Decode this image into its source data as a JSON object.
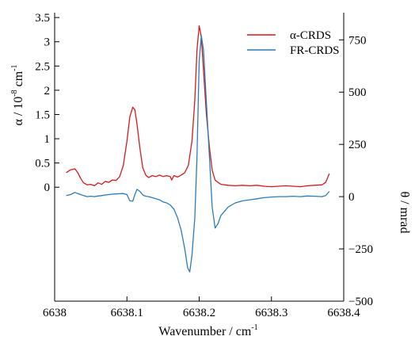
{
  "chart_data": {
    "type": "line",
    "xlabel": "Wavenumber / cm",
    "xlabel_sup": "-1",
    "ylabel_left": "α / 10",
    "ylabel_left_exp": "-8",
    "ylabel_left_unit": "cm",
    "ylabel_left_unit_exp": "-1",
    "ylabel_right": "θ / mrad",
    "xlim": [
      6638.0,
      6638.4
    ],
    "ylim_left": [
      -2.35,
      3.6
    ],
    "ylim_right": [
      -500,
      880
    ],
    "x_ticks": [
      "6638",
      "6638.1",
      "6638.2",
      "6638.3",
      "6638.4"
    ],
    "y_left_ticks": [
      "0",
      "0.5",
      "1",
      "1.5",
      "2",
      "2.5",
      "3",
      "3.5"
    ],
    "y_right_ticks": [
      "-500",
      "-250",
      "0",
      "250",
      "500",
      "750"
    ],
    "legend_position": "top-right",
    "grid": false,
    "series": [
      {
        "name": "α-CRDS",
        "axis": "left",
        "color": "#d7191c",
        "x": [
          6638.016,
          6638.022,
          6638.028,
          6638.032,
          6638.036,
          6638.04,
          6638.045,
          6638.05,
          6638.055,
          6638.06,
          6638.065,
          6638.07,
          6638.075,
          6638.08,
          6638.085,
          6638.09,
          6638.095,
          6638.1,
          6638.104,
          6638.108,
          6638.111,
          6638.114,
          6638.118,
          6638.122,
          6638.126,
          6638.13,
          6638.135,
          6638.14,
          6638.145,
          6638.15,
          6638.155,
          6638.16,
          6638.162,
          6638.165,
          6638.17,
          6638.175,
          6638.18,
          6638.185,
          6638.19,
          6638.194,
          6638.197,
          6638.2,
          6638.203,
          6638.206,
          6638.21,
          6638.214,
          6638.218,
          6638.222,
          6638.226,
          6638.23,
          6638.24,
          6638.25,
          6638.26,
          6638.27,
          6638.28,
          6638.29,
          6638.3,
          6638.31,
          6638.32,
          6638.33,
          6638.34,
          6638.35,
          6638.36,
          6638.37,
          6638.375,
          6638.38
        ],
        "y": [
          0.3,
          0.36,
          0.38,
          0.3,
          0.18,
          0.09,
          0.05,
          0.06,
          0.03,
          0.09,
          0.06,
          0.12,
          0.1,
          0.15,
          0.14,
          0.22,
          0.45,
          0.95,
          1.45,
          1.65,
          1.6,
          1.3,
          0.8,
          0.4,
          0.25,
          0.2,
          0.24,
          0.22,
          0.25,
          0.22,
          0.24,
          0.22,
          0.15,
          0.24,
          0.21,
          0.25,
          0.3,
          0.45,
          0.95,
          1.8,
          2.85,
          3.33,
          3.1,
          2.4,
          1.5,
          0.85,
          0.35,
          0.15,
          0.1,
          0.06,
          0.04,
          0.03,
          0.04,
          0.03,
          0.04,
          0.02,
          0.01,
          0.02,
          0.03,
          0.02,
          0.01,
          0.03,
          0.04,
          0.05,
          0.1,
          0.28
        ]
      },
      {
        "name": "FR-CRDS",
        "axis": "right",
        "color": "#2b7bb9",
        "x": [
          6638.016,
          6638.022,
          6638.028,
          6638.032,
          6638.036,
          6638.04,
          6638.045,
          6638.05,
          6638.055,
          6638.06,
          6638.065,
          6638.07,
          6638.075,
          6638.08,
          6638.085,
          6638.09,
          6638.095,
          6638.1,
          6638.104,
          6638.108,
          6638.111,
          6638.114,
          6638.118,
          6638.122,
          6638.126,
          6638.13,
          6638.135,
          6638.14,
          6638.145,
          6638.15,
          6638.155,
          6638.16,
          6638.165,
          6638.17,
          6638.175,
          6638.18,
          6638.184,
          6638.187,
          6638.19,
          6638.194,
          6638.197,
          6638.2,
          6638.203,
          6638.206,
          6638.21,
          6638.214,
          6638.218,
          6638.222,
          6638.226,
          6638.23,
          6638.24,
          6638.25,
          6638.26,
          6638.27,
          6638.28,
          6638.29,
          6638.3,
          6638.31,
          6638.32,
          6638.33,
          6638.34,
          6638.35,
          6638.36,
          6638.37,
          6638.375,
          6638.38
        ],
        "y": [
          5,
          10,
          20,
          15,
          10,
          5,
          0,
          2,
          0,
          3,
          5,
          8,
          10,
          12,
          13,
          14,
          15,
          10,
          -20,
          -22,
          10,
          35,
          25,
          8,
          2,
          0,
          -5,
          -10,
          -15,
          -25,
          -30,
          -40,
          -60,
          -100,
          -160,
          -250,
          -340,
          -360,
          -280,
          -100,
          200,
          650,
          770,
          700,
          450,
          200,
          -50,
          -150,
          -130,
          -90,
          -50,
          -30,
          -20,
          -15,
          -10,
          -5,
          -2,
          0,
          0,
          2,
          0,
          3,
          2,
          0,
          5,
          25
        ]
      }
    ]
  }
}
